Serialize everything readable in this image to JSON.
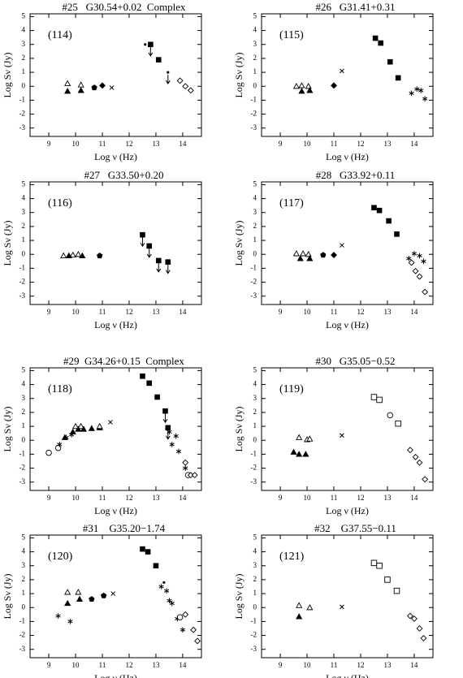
{
  "chart_data": [
    {
      "type": "scatter",
      "title": "#25   G30.54+0.02  Complex",
      "label": "(114)",
      "xlabel": "Log ν (Hz)",
      "ylabel": "Log Sν (Jy)",
      "xlim": [
        8.3,
        14.7
      ],
      "ylim": [
        -3.6,
        5.2
      ],
      "xticks": [
        9,
        10,
        11,
        12,
        13,
        14
      ],
      "yticks": [
        -3,
        -2,
        -1,
        0,
        1,
        2,
        3,
        4,
        5
      ],
      "series": [
        {
          "marker": "open-triangle",
          "x": [
            9.7,
            10.2
          ],
          "values": [
            0.2,
            0.1
          ]
        },
        {
          "marker": "filled-triangle",
          "x": [
            9.7,
            10.2
          ],
          "values": [
            -0.35,
            -0.3
          ]
        },
        {
          "marker": "filled-pentagon",
          "x": [
            10.7
          ],
          "values": [
            -0.1
          ]
        },
        {
          "marker": "filled-diamond",
          "x": [
            11.0
          ],
          "values": [
            0.05
          ]
        },
        {
          "marker": "cross",
          "x": [
            11.35
          ],
          "values": [
            -0.1
          ]
        },
        {
          "marker": "dot",
          "x": [
            12.6
          ],
          "values": [
            3.0
          ]
        },
        {
          "marker": "filled-square",
          "x": [
            13.1
          ],
          "values": [
            1.9
          ]
        },
        {
          "marker": "filled-square",
          "upper_limit": true,
          "x": [
            12.8
          ],
          "values": [
            3.0
          ]
        },
        {
          "marker": "dot",
          "upper_limit": true,
          "x": [
            13.45
          ],
          "values": [
            1.0
          ]
        },
        {
          "marker": "open-diamond",
          "x": [
            13.9,
            14.1,
            14.3
          ],
          "values": [
            0.4,
            0.0,
            -0.3
          ]
        }
      ]
    },
    {
      "type": "scatter",
      "title": "#26   G31.41+0.31",
      "label": "(115)",
      "xlabel": "Log ν (Hz)",
      "ylabel": "Log Sν (Jy)",
      "xlim": [
        8.3,
        14.7
      ],
      "ylim": [
        -3.6,
        5.2
      ],
      "xticks": [
        9,
        10,
        11,
        12,
        13,
        14
      ],
      "yticks": [
        -3,
        -2,
        -1,
        0,
        1,
        2,
        3,
        4,
        5
      ],
      "series": [
        {
          "marker": "open-triangle",
          "x": [
            9.6,
            9.8,
            10.05
          ],
          "values": [
            0.0,
            0.05,
            0.0
          ]
        },
        {
          "marker": "filled-triangle",
          "x": [
            9.8,
            10.1
          ],
          "values": [
            -0.35,
            -0.3
          ]
        },
        {
          "marker": "filled-diamond",
          "x": [
            11.0
          ],
          "values": [
            0.05
          ]
        },
        {
          "marker": "cross",
          "x": [
            11.3
          ],
          "values": [
            1.1
          ]
        },
        {
          "marker": "filled-square",
          "x": [
            12.55,
            12.75,
            13.1,
            13.4
          ],
          "values": [
            3.45,
            3.1,
            1.75,
            0.6
          ]
        },
        {
          "marker": "asterisk",
          "x": [
            13.9,
            14.1,
            14.25,
            14.4
          ],
          "values": [
            -0.5,
            -0.2,
            -0.3,
            -0.9
          ]
        }
      ]
    },
    {
      "type": "scatter",
      "title": "#27   G33.50+0.20",
      "label": "(116)",
      "xlabel": "Log ν (Hz)",
      "ylabel": "Log Sν (Jy)",
      "xlim": [
        8.3,
        14.7
      ],
      "ylim": [
        -3.6,
        5.2
      ],
      "xticks": [
        9,
        10,
        11,
        12,
        13,
        14
      ],
      "yticks": [
        -3,
        -2,
        -1,
        0,
        1,
        2,
        3,
        4,
        5
      ],
      "series": [
        {
          "marker": "open-triangle",
          "x": [
            9.55,
            9.9,
            10.1
          ],
          "values": [
            -0.1,
            -0.05,
            0.0
          ]
        },
        {
          "marker": "filled-triangle",
          "x": [
            9.75,
            10.25
          ],
          "values": [
            -0.1,
            -0.1
          ]
        },
        {
          "marker": "filled-pentagon",
          "x": [
            10.9
          ],
          "values": [
            -0.1
          ]
        },
        {
          "marker": "filled-square",
          "upper_limit": true,
          "x": [
            12.5,
            12.75,
            13.1,
            13.45
          ],
          "values": [
            1.4,
            0.6,
            -0.45,
            -0.55
          ]
        }
      ]
    },
    {
      "type": "scatter",
      "title": "#28   G33.92+0.11",
      "label": "(117)",
      "xlabel": "Log ν (Hz)",
      "ylabel": "Log Sν (Jy)",
      "xlim": [
        8.3,
        14.7
      ],
      "ylim": [
        -3.6,
        5.2
      ],
      "xticks": [
        9,
        10,
        11,
        12,
        13,
        14
      ],
      "yticks": [
        -3,
        -2,
        -1,
        0,
        1,
        2,
        3,
        4,
        5
      ],
      "series": [
        {
          "marker": "open-triangle",
          "x": [
            9.6,
            9.85,
            10.05
          ],
          "values": [
            0.05,
            0.05,
            0.0
          ]
        },
        {
          "marker": "filled-triangle",
          "x": [
            9.75,
            10.1
          ],
          "values": [
            -0.3,
            -0.3
          ]
        },
        {
          "marker": "filled-pentagon",
          "x": [
            10.6
          ],
          "values": [
            -0.05
          ]
        },
        {
          "marker": "filled-diamond",
          "x": [
            11.0
          ],
          "values": [
            -0.05
          ]
        },
        {
          "marker": "cross",
          "x": [
            11.3
          ],
          "values": [
            0.65
          ]
        },
        {
          "marker": "filled-square",
          "x": [
            12.5,
            12.7,
            13.05,
            13.35
          ],
          "values": [
            3.35,
            3.15,
            2.4,
            1.45
          ]
        },
        {
          "marker": "asterisk",
          "x": [
            13.8,
            14.0,
            14.2,
            14.35
          ],
          "values": [
            -0.3,
            0.05,
            -0.1,
            -0.5
          ]
        },
        {
          "marker": "open-diamond",
          "x": [
            13.9,
            14.05,
            14.2,
            14.4
          ],
          "values": [
            -0.6,
            -1.2,
            -1.6,
            -2.7
          ]
        }
      ]
    },
    {
      "type": "scatter",
      "title": "#29  G34.26+0.15  Complex",
      "label": "(118)",
      "xlabel": "Log ν (Hz)",
      "ylabel": "Log Sν (Jy)",
      "xlim": [
        8.3,
        14.7
      ],
      "ylim": [
        -3.6,
        5.2
      ],
      "xticks": [
        9,
        10,
        11,
        12,
        13,
        14
      ],
      "yticks": [
        -3,
        -2,
        -1,
        0,
        1,
        2,
        3,
        4,
        5
      ],
      "series": [
        {
          "marker": "open-circle",
          "x": [
            9.0,
            9.35,
            14.2
          ],
          "values": [
            -0.9,
            -0.55,
            -2.5
          ]
        },
        {
          "marker": "asterisk",
          "x": [
            9.4,
            9.65,
            9.85,
            13.5,
            13.6,
            13.75,
            13.85,
            14.1
          ],
          "values": [
            -0.3,
            0.2,
            0.4,
            0.6,
            -0.3,
            0.3,
            -0.8,
            -2.0
          ]
        },
        {
          "marker": "filled-triangle",
          "x": [
            9.6,
            9.9,
            10.1,
            10.3,
            10.6,
            10.9
          ],
          "values": [
            0.2,
            0.6,
            0.8,
            0.8,
            0.85,
            0.9
          ]
        },
        {
          "marker": "open-triangle",
          "x": [
            10.0,
            10.2,
            10.9
          ],
          "values": [
            1.0,
            1.0,
            1.0
          ]
        },
        {
          "marker": "cross",
          "x": [
            11.3
          ],
          "values": [
            1.3
          ]
        },
        {
          "marker": "filled-square",
          "x": [
            12.5,
            12.75,
            13.05
          ],
          "values": [
            4.6,
            4.1,
            3.1
          ]
        },
        {
          "marker": "filled-square",
          "upper_limit": true,
          "x": [
            13.35,
            13.45
          ],
          "values": [
            2.1,
            0.9
          ]
        },
        {
          "marker": "open-diamond",
          "x": [
            14.1,
            14.3,
            14.45
          ],
          "values": [
            -1.6,
            -2.5,
            -2.5
          ]
        }
      ]
    },
    {
      "type": "scatter",
      "title": "#30   G35.05−0.52",
      "label": "(119)",
      "xlabel": "Log ν (Hz)",
      "ylabel": "Log Sν (Jy)",
      "xlim": [
        8.3,
        14.7
      ],
      "ylim": [
        -3.6,
        5.2
      ],
      "xticks": [
        9,
        10,
        11,
        12,
        13,
        14
      ],
      "yticks": [
        -3,
        -2,
        -1,
        0,
        1,
        2,
        3,
        4,
        5
      ],
      "series": [
        {
          "marker": "open-triangle",
          "x": [
            9.7,
            10.0,
            10.1
          ],
          "values": [
            0.2,
            0.05,
            0.1
          ]
        },
        {
          "marker": "filled-triangle",
          "x": [
            9.5,
            9.7,
            9.95
          ],
          "values": [
            -0.85,
            -1.0,
            -1.0
          ]
        },
        {
          "marker": "cross",
          "x": [
            11.3
          ],
          "values": [
            0.35
          ]
        },
        {
          "marker": "open-square",
          "x": [
            12.5,
            12.7,
            13.4
          ],
          "values": [
            3.1,
            2.9,
            1.2
          ]
        },
        {
          "marker": "open-circle",
          "x": [
            13.1
          ],
          "values": [
            1.8
          ]
        },
        {
          "marker": "open-diamond",
          "x": [
            13.85,
            14.05,
            14.2,
            14.4
          ],
          "values": [
            -0.7,
            -1.2,
            -1.6,
            -2.8
          ]
        }
      ]
    },
    {
      "type": "scatter",
      "title": "#31    G35.20−1.74",
      "label": "(120)",
      "xlabel": "Log ν (Hz)",
      "ylabel": "Log Sν (Jy)",
      "xlim": [
        8.3,
        14.7
      ],
      "ylim": [
        -3.6,
        5.2
      ],
      "xticks": [
        9,
        10,
        11,
        12,
        13,
        14
      ],
      "yticks": [
        -3,
        -2,
        -1,
        0,
        1,
        2,
        3,
        4,
        5
      ],
      "series": [
        {
          "marker": "asterisk",
          "x": [
            9.35,
            9.8,
            13.2,
            13.4,
            13.5,
            13.6,
            13.8,
            14.0
          ],
          "values": [
            -0.6,
            -1.0,
            1.5,
            1.2,
            0.5,
            0.3,
            -0.8,
            -1.6
          ]
        },
        {
          "marker": "open-triangle",
          "x": [
            9.7,
            10.1
          ],
          "values": [
            1.1,
            1.1
          ]
        },
        {
          "marker": "filled-triangle",
          "x": [
            9.7,
            10.15
          ],
          "values": [
            0.3,
            0.6
          ]
        },
        {
          "marker": "filled-pentagon",
          "x": [
            10.6,
            11.05
          ],
          "values": [
            0.6,
            0.85
          ]
        },
        {
          "marker": "cross",
          "x": [
            11.4
          ],
          "values": [
            1.0
          ]
        },
        {
          "marker": "filled-square",
          "x": [
            12.5,
            12.7,
            13.0
          ],
          "values": [
            4.2,
            4.0,
            3.0
          ]
        },
        {
          "marker": "dot",
          "x": [
            13.3
          ],
          "values": [
            1.8
          ]
        },
        {
          "marker": "open-circle",
          "x": [
            13.9
          ],
          "values": [
            -0.7
          ]
        },
        {
          "marker": "open-diamond",
          "x": [
            14.1,
            14.4,
            14.55
          ],
          "values": [
            -0.5,
            -1.6,
            -2.4
          ]
        }
      ]
    },
    {
      "type": "scatter",
      "title": "#32    G37.55−0.11",
      "label": "(121)",
      "xlabel": "Log ν (Hz)",
      "ylabel": "Log Sν (Jy)",
      "xlim": [
        8.3,
        14.7
      ],
      "ylim": [
        -3.6,
        5.2
      ],
      "xticks": [
        9,
        10,
        11,
        12,
        13,
        14
      ],
      "yticks": [
        -3,
        -2,
        -1,
        0,
        1,
        2,
        3,
        4,
        5
      ],
      "series": [
        {
          "marker": "open-triangle",
          "x": [
            9.7,
            10.1
          ],
          "values": [
            0.15,
            0.0
          ]
        },
        {
          "marker": "filled-triangle",
          "x": [
            9.7
          ],
          "values": [
            -0.65
          ]
        },
        {
          "marker": "cross",
          "x": [
            11.3
          ],
          "values": [
            0.05
          ]
        },
        {
          "marker": "open-square",
          "x": [
            12.5,
            12.7,
            13.0,
            13.35
          ],
          "values": [
            3.2,
            3.0,
            2.0,
            1.2
          ]
        },
        {
          "marker": "open-diamond",
          "x": [
            13.85,
            14.0,
            14.2,
            14.35
          ],
          "values": [
            -0.6,
            -0.8,
            -1.5,
            -2.2
          ]
        }
      ]
    }
  ]
}
